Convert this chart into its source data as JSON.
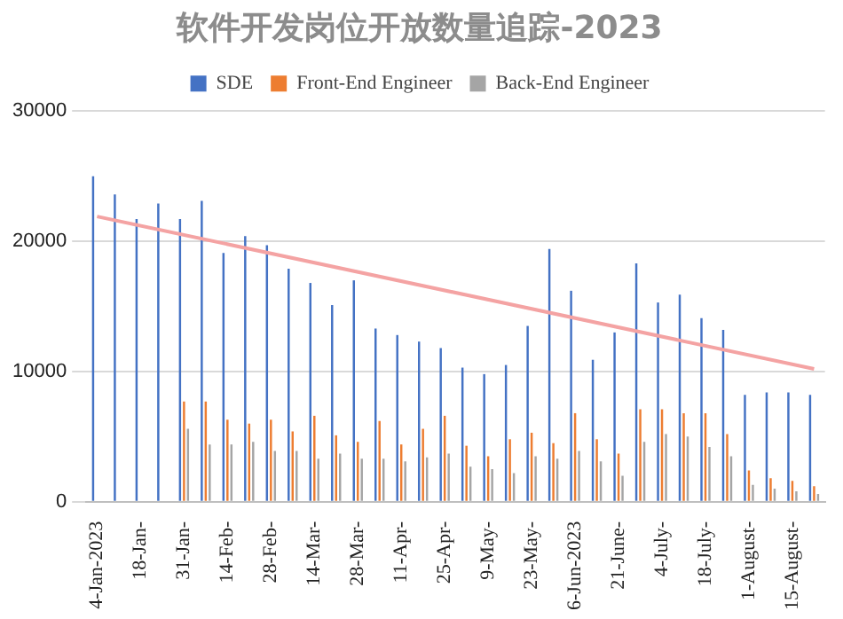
{
  "chart_data": {
    "type": "bar",
    "title": "软件开发岗位开放数量追踪-2023",
    "categories": [
      "4-Jan-2023",
      null,
      "18-Jan-",
      null,
      "31-Jan-",
      null,
      "14-Feb-",
      null,
      "28-Feb-",
      null,
      "14-Mar-",
      null,
      "28-Mar-",
      null,
      "11-Apr-",
      null,
      "25-Apr-",
      null,
      "9-May-",
      null,
      "23-May-",
      null,
      "6-Jun-2023",
      null,
      "21-June-",
      null,
      "4-July-",
      null,
      "18-July-",
      null,
      "1-August-",
      null,
      "15-August-",
      null
    ],
    "series": [
      {
        "name": "SDE",
        "color": "#4472c4",
        "values": [
          25000,
          23600,
          21700,
          22900,
          21700,
          23100,
          19100,
          20400,
          19700,
          17900,
          16800,
          15100,
          17000,
          13300,
          12800,
          12300,
          11800,
          10300,
          9800,
          10500,
          13500,
          19400,
          16200,
          10900,
          13000,
          18300,
          15300,
          15900,
          14100,
          13200,
          8200,
          8400,
          8400,
          8200
        ]
      },
      {
        "name": "Front-End Engineer",
        "color": "#ed7d31",
        "values": [
          null,
          null,
          null,
          null,
          7700,
          7700,
          6300,
          6000,
          6300,
          5400,
          6600,
          5100,
          4600,
          6200,
          4400,
          5600,
          6600,
          4300,
          3500,
          4800,
          5300,
          4500,
          6800,
          4800,
          3700,
          7100,
          7100,
          6800,
          6800,
          5200,
          2400,
          1800,
          1600,
          1200
        ]
      },
      {
        "name": "Back-End Engineer",
        "color": "#a5a5a5",
        "values": [
          null,
          null,
          null,
          null,
          5600,
          4400,
          4400,
          4600,
          3900,
          3900,
          3300,
          3700,
          3300,
          3300,
          3100,
          3400,
          3700,
          2700,
          2500,
          2200,
          3500,
          3300,
          3900,
          3100,
          2000,
          4600,
          5200,
          5000,
          4200,
          3500,
          1300,
          1000,
          800,
          600
        ]
      },
      {
        "type": "line",
        "color": "#f4a3a3",
        "values": [
          21900,
          null,
          null,
          null,
          null,
          null,
          null,
          null,
          null,
          null,
          null,
          null,
          null,
          null,
          null,
          null,
          null,
          null,
          null,
          null,
          null,
          null,
          null,
          null,
          null,
          null,
          null,
          null,
          null,
          null,
          null,
          null,
          null,
          10200
        ]
      }
    ],
    "ylim": [
      0,
      30000
    ],
    "yticks": [
      0,
      10000,
      20000,
      30000
    ],
    "grid": "y",
    "legend": "top"
  }
}
